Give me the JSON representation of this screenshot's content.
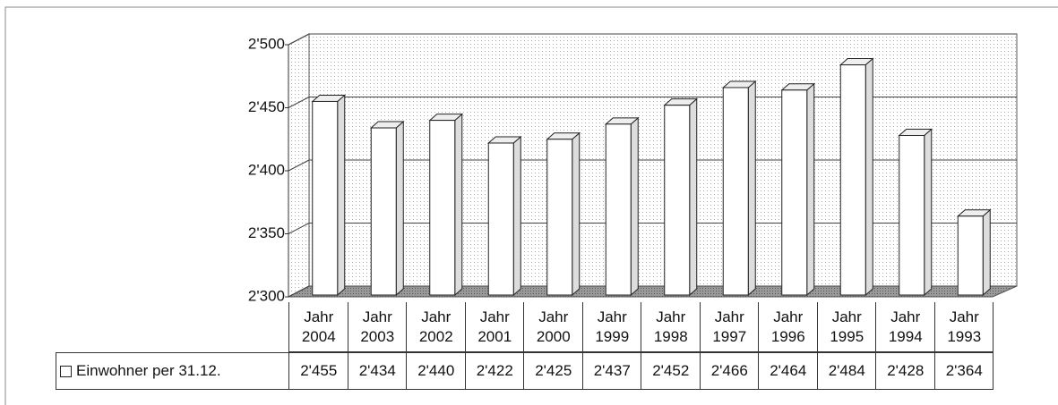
{
  "chart_data": {
    "type": "bar3d",
    "categories": [
      "Jahr 2004",
      "Jahr 2003",
      "Jahr 2002",
      "Jahr 2001",
      "Jahr 2000",
      "Jahr 1999",
      "Jahr 1998",
      "Jahr 1997",
      "Jahr 1996",
      "Jahr 1995",
      "Jahr 1994",
      "Jahr 1993"
    ],
    "series": [
      {
        "name": "Einwohner per 31.12.",
        "color": "#ffffff",
        "values": [
          2455,
          2434,
          2440,
          2422,
          2425,
          2437,
          2452,
          2466,
          2464,
          2484,
          2428,
          2364
        ],
        "value_labels": [
          "2'455",
          "2'434",
          "2'440",
          "2'422",
          "2'425",
          "2'437",
          "2'452",
          "2'466",
          "2'464",
          "2'484",
          "2'428",
          "2'364"
        ]
      }
    ],
    "ylim": [
      2300,
      2500
    ],
    "yticks": [
      {
        "value": 2300,
        "label": "2'300"
      },
      {
        "value": 2350,
        "label": "2'350"
      },
      {
        "value": 2400,
        "label": "2'400"
      },
      {
        "value": 2450,
        "label": "2'450"
      },
      {
        "value": 2500,
        "label": "2'500"
      }
    ],
    "grid": true,
    "data_table": true
  }
}
